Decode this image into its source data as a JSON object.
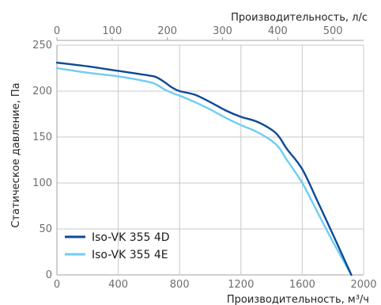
{
  "chart_data": {
    "type": "line",
    "title": "",
    "xlabel": "Производительность, м³/ч",
    "x2label": "Производительность, л/с",
    "ylabel": "Статическое давление, Па",
    "xlim": [
      0,
      2000
    ],
    "x2lim": [
      0,
      555.6
    ],
    "ylim": [
      0,
      250
    ],
    "x_ticks": [
      0,
      400,
      800,
      1200,
      1600,
      2000
    ],
    "x2_ticks": [
      0,
      100,
      200,
      300,
      400,
      500
    ],
    "y_ticks": [
      0,
      50,
      100,
      150,
      200,
      250
    ],
    "grid": true,
    "legend_position": "bottom-left",
    "colors": {
      "series_4d": "#0d4a96",
      "series_4e": "#6fcdf2",
      "grid": "#c8c8c8",
      "axis": "#a0a0a0"
    },
    "series": [
      {
        "name": "Iso-VK 355 4D",
        "x": [
          0,
          200,
          400,
          600,
          650,
          700,
          750,
          800,
          900,
          1000,
          1100,
          1200,
          1300,
          1400,
          1450,
          1500,
          1600,
          1700,
          1800,
          1920
        ],
        "y": [
          231,
          227,
          222,
          217,
          215,
          210,
          204,
          200,
          196,
          188,
          179,
          172,
          167,
          158,
          150,
          137,
          115,
          80,
          44,
          0
        ]
      },
      {
        "name": "Iso-VK 355 4E",
        "x": [
          0,
          200,
          400,
          600,
          650,
          700,
          750,
          800,
          900,
          1000,
          1100,
          1200,
          1300,
          1400,
          1450,
          1500,
          1600,
          1700,
          1800,
          1920
        ],
        "y": [
          225,
          220,
          216,
          210,
          207,
          202,
          198,
          195,
          188,
          180,
          171,
          163,
          156,
          146,
          138,
          125,
          100,
          68,
          36,
          0
        ]
      }
    ]
  }
}
